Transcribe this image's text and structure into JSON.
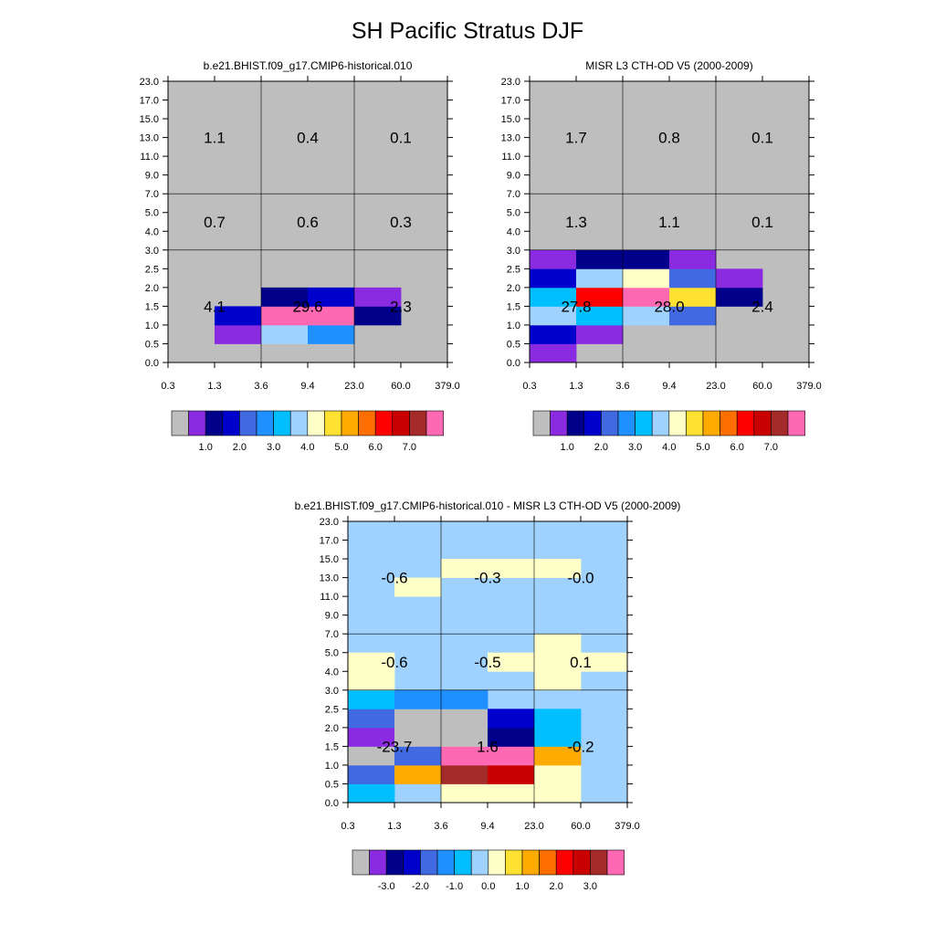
{
  "title": "SH Pacific Stratus DJF",
  "colors": {
    "gray": "#bebebe",
    "pos_palette": [
      "#bebebe",
      "#8a2be2",
      "#00008b",
      "#0000cd",
      "#4169e1",
      "#1e90ff",
      "#00bfff",
      "#a0d2ff",
      "#ffffc8",
      "#ffe132",
      "#ffaa00",
      "#ff6e00",
      "#ff0000",
      "#c80000",
      "#a52a2a",
      "#ff69b4"
    ],
    "diff_palette": [
      "#bebebe",
      "#8a2be2",
      "#00008b",
      "#0000cd",
      "#4169e1",
      "#1e90ff",
      "#00bfff",
      "#a0d2ff",
      "#ffffc8",
      "#ffe132",
      "#ffaa00",
      "#ff6e00",
      "#ff0000",
      "#c80000",
      "#a52a2a",
      "#ff69b4"
    ]
  },
  "chart_data": [
    {
      "type": "heatmap",
      "title": "b.e21.BHIST.f09_g17.CMIP6-historical.010",
      "x_tick_labels": [
        "0.3",
        "1.3",
        "3.6",
        "9.4",
        "23.0",
        "60.0",
        "379.0"
      ],
      "y_tick_labels": [
        "0.0",
        "0.5",
        "1.0",
        "1.5",
        "2.0",
        "2.5",
        "3.0",
        "4.0",
        "5.0",
        "7.0",
        "9.0",
        "11.0",
        "13.0",
        "15.0",
        "17.0",
        "23.0"
      ],
      "background_color_index": 0,
      "cell_color_index": [
        [
          0,
          0,
          0,
          0,
          0,
          0
        ],
        [
          0,
          1,
          7,
          5,
          0,
          0
        ],
        [
          0,
          3,
          15,
          15,
          2,
          0
        ],
        [
          0,
          0,
          2,
          3,
          1,
          0
        ],
        [
          0,
          0,
          0,
          0,
          0,
          0
        ],
        [
          0,
          0,
          0,
          0,
          0,
          0
        ],
        [
          0,
          0,
          0,
          0,
          0,
          0
        ],
        [
          0,
          0,
          0,
          0,
          0,
          0
        ],
        [
          0,
          0,
          0,
          0,
          0,
          0
        ],
        [
          0,
          0,
          0,
          0,
          0,
          0
        ],
        [
          0,
          0,
          0,
          0,
          0,
          0
        ],
        [
          0,
          0,
          0,
          0,
          0,
          0
        ],
        [
          0,
          0,
          0,
          0,
          0,
          0
        ],
        [
          0,
          0,
          0,
          0,
          0,
          0
        ],
        [
          0,
          0,
          0,
          0,
          0,
          0
        ]
      ],
      "block_values": [
        {
          "x_group": "0.3-3.6",
          "y_group": "0.0-3.0",
          "value": "4.1"
        },
        {
          "x_group": "3.6-23.0",
          "y_group": "0.0-3.0",
          "value": "29.6"
        },
        {
          "x_group": "23.0-379.0",
          "y_group": "0.0-3.0",
          "value": "2.3"
        },
        {
          "x_group": "0.3-3.6",
          "y_group": "3.0-7.0",
          "value": "0.7"
        },
        {
          "x_group": "3.6-23.0",
          "y_group": "3.0-7.0",
          "value": "0.6"
        },
        {
          "x_group": "23.0-379.0",
          "y_group": "3.0-7.0",
          "value": "0.3"
        },
        {
          "x_group": "0.3-3.6",
          "y_group": "7.0-23.0",
          "value": "1.1"
        },
        {
          "x_group": "3.6-23.0",
          "y_group": "7.0-23.0",
          "value": "0.4"
        },
        {
          "x_group": "23.0-379.0",
          "y_group": "7.0-23.0",
          "value": "0.1"
        }
      ],
      "colorbar": {
        "labels": [
          "1.0",
          "2.0",
          "3.0",
          "4.0",
          "5.0",
          "6.0",
          "7.0"
        ]
      }
    },
    {
      "type": "heatmap",
      "title": "MISR L3 CTH-OD V5 (2000-2009)",
      "x_tick_labels": [
        "0.3",
        "1.3",
        "3.6",
        "9.4",
        "23.0",
        "60.0",
        "379.0"
      ],
      "y_tick_labels": [
        "0.0",
        "0.5",
        "1.0",
        "1.5",
        "2.0",
        "2.5",
        "3.0",
        "4.0",
        "5.0",
        "7.0",
        "9.0",
        "11.0",
        "13.0",
        "15.0",
        "17.0",
        "23.0"
      ],
      "background_color_index": 0,
      "cell_color_index": [
        [
          1,
          0,
          0,
          0,
          0,
          0
        ],
        [
          3,
          1,
          0,
          0,
          0,
          0
        ],
        [
          7,
          6,
          7,
          4,
          0,
          0
        ],
        [
          6,
          12,
          15,
          9,
          2,
          0
        ],
        [
          3,
          7,
          8,
          4,
          1,
          0
        ],
        [
          1,
          2,
          2,
          1,
          0,
          0
        ],
        [
          0,
          0,
          0,
          0,
          0,
          0
        ],
        [
          0,
          0,
          0,
          0,
          0,
          0
        ],
        [
          0,
          0,
          0,
          0,
          0,
          0
        ],
        [
          0,
          0,
          0,
          0,
          0,
          0
        ],
        [
          0,
          0,
          0,
          0,
          0,
          0
        ],
        [
          0,
          0,
          0,
          0,
          0,
          0
        ],
        [
          0,
          0,
          0,
          0,
          0,
          0
        ],
        [
          0,
          0,
          0,
          0,
          0,
          0
        ],
        [
          0,
          0,
          0,
          0,
          0,
          0
        ]
      ],
      "block_values": [
        {
          "x_group": "0.3-3.6",
          "y_group": "0.0-3.0",
          "value": "27.8"
        },
        {
          "x_group": "3.6-23.0",
          "y_group": "0.0-3.0",
          "value": "28.0"
        },
        {
          "x_group": "23.0-379.0",
          "y_group": "0.0-3.0",
          "value": "2.4"
        },
        {
          "x_group": "0.3-3.6",
          "y_group": "3.0-7.0",
          "value": "1.3"
        },
        {
          "x_group": "3.6-23.0",
          "y_group": "3.0-7.0",
          "value": "1.1"
        },
        {
          "x_group": "23.0-379.0",
          "y_group": "3.0-7.0",
          "value": "0.1"
        },
        {
          "x_group": "0.3-3.6",
          "y_group": "7.0-23.0",
          "value": "1.7"
        },
        {
          "x_group": "3.6-23.0",
          "y_group": "7.0-23.0",
          "value": "0.8"
        },
        {
          "x_group": "23.0-379.0",
          "y_group": "7.0-23.0",
          "value": "0.1"
        }
      ],
      "colorbar": {
        "labels": [
          "1.0",
          "2.0",
          "3.0",
          "4.0",
          "5.0",
          "6.0",
          "7.0"
        ]
      }
    },
    {
      "type": "heatmap",
      "title": "b.e21.BHIST.f09_g17.CMIP6-historical.010 - MISR L3 CTH-OD V5 (2000-2009)",
      "x_tick_labels": [
        "0.3",
        "1.3",
        "3.6",
        "9.4",
        "23.0",
        "60.0",
        "379.0"
      ],
      "y_tick_labels": [
        "0.0",
        "0.5",
        "1.0",
        "1.5",
        "2.0",
        "2.5",
        "3.0",
        "4.0",
        "5.0",
        "7.0",
        "9.0",
        "11.0",
        "13.0",
        "15.0",
        "17.0",
        "23.0"
      ],
      "background_color_index": 7,
      "cell_color_index": [
        [
          6,
          7,
          8,
          8,
          8,
          7
        ],
        [
          4,
          10,
          14,
          13,
          8,
          7
        ],
        [
          0,
          4,
          15,
          15,
          10,
          7
        ],
        [
          1,
          0,
          0,
          2,
          6,
          7
        ],
        [
          4,
          0,
          0,
          3,
          6,
          7
        ],
        [
          6,
          5,
          5,
          7,
          7,
          7
        ],
        [
          8,
          7,
          7,
          7,
          8,
          7
        ],
        [
          8,
          7,
          7,
          8,
          8,
          8
        ],
        [
          7,
          7,
          7,
          7,
          8,
          7
        ],
        [
          7,
          7,
          7,
          7,
          7,
          7
        ],
        [
          7,
          7,
          7,
          7,
          7,
          7
        ],
        [
          7,
          8,
          7,
          7,
          7,
          7
        ],
        [
          7,
          7,
          8,
          8,
          8,
          7
        ],
        [
          7,
          7,
          7,
          7,
          7,
          7
        ],
        [
          7,
          7,
          7,
          7,
          7,
          7
        ]
      ],
      "block_values": [
        {
          "x_group": "0.3-3.6",
          "y_group": "0.0-3.0",
          "value": "-23.7"
        },
        {
          "x_group": "3.6-23.0",
          "y_group": "0.0-3.0",
          "value": "1.6"
        },
        {
          "x_group": "23.0-379.0",
          "y_group": "0.0-3.0",
          "value": "-0.2"
        },
        {
          "x_group": "0.3-3.6",
          "y_group": "3.0-7.0",
          "value": "-0.6"
        },
        {
          "x_group": "3.6-23.0",
          "y_group": "3.0-7.0",
          "value": "-0.5"
        },
        {
          "x_group": "23.0-379.0",
          "y_group": "3.0-7.0",
          "value": "0.1"
        },
        {
          "x_group": "0.3-3.6",
          "y_group": "7.0-23.0",
          "value": "-0.6"
        },
        {
          "x_group": "3.6-23.0",
          "y_group": "7.0-23.0",
          "value": "-0.3"
        },
        {
          "x_group": "23.0-379.0",
          "y_group": "7.0-23.0",
          "value": "-0.0"
        }
      ],
      "colorbar": {
        "labels": [
          "-3.0",
          "-2.0",
          "-1.0",
          "0.0",
          "1.0",
          "2.0",
          "3.0"
        ]
      }
    }
  ]
}
